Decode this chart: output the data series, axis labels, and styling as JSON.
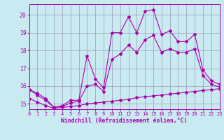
{
  "x": [
    0,
    1,
    2,
    3,
    4,
    5,
    6,
    7,
    8,
    9,
    10,
    11,
    12,
    13,
    14,
    15,
    16,
    17,
    18,
    19,
    20,
    21,
    22,
    23
  ],
  "line1": [
    15.8,
    15.6,
    15.3,
    14.8,
    14.9,
    15.2,
    15.2,
    17.7,
    16.4,
    15.9,
    19.0,
    19.0,
    19.9,
    19.0,
    20.2,
    20.3,
    18.9,
    19.1,
    18.5,
    18.5,
    18.9,
    16.9,
    16.3,
    16.1
  ],
  "line2": [
    15.8,
    15.5,
    15.2,
    14.8,
    14.85,
    15.05,
    15.15,
    16.0,
    16.1,
    15.7,
    17.5,
    17.8,
    18.3,
    17.9,
    18.6,
    18.85,
    17.9,
    18.1,
    17.9,
    17.9,
    18.1,
    16.6,
    16.1,
    15.95
  ],
  "line3": [
    15.3,
    15.1,
    14.9,
    14.75,
    14.8,
    14.85,
    14.9,
    15.0,
    15.05,
    15.1,
    15.15,
    15.2,
    15.25,
    15.35,
    15.4,
    15.45,
    15.5,
    15.55,
    15.6,
    15.65,
    15.7,
    15.75,
    15.8,
    15.85
  ],
  "bg_color": "#c8eaf0",
  "line_color": "#aa00aa",
  "grid_color": "#9999bb",
  "xlabel": "Windchill (Refroidissement éolien,°C)",
  "xlim": [
    0,
    23
  ],
  "ylim": [
    14.7,
    20.6
  ],
  "yticks": [
    15,
    16,
    17,
    18,
    19,
    20
  ],
  "xticks": [
    0,
    1,
    2,
    3,
    4,
    5,
    6,
    7,
    8,
    9,
    10,
    11,
    12,
    13,
    14,
    15,
    16,
    17,
    18,
    19,
    20,
    21,
    22,
    23
  ]
}
